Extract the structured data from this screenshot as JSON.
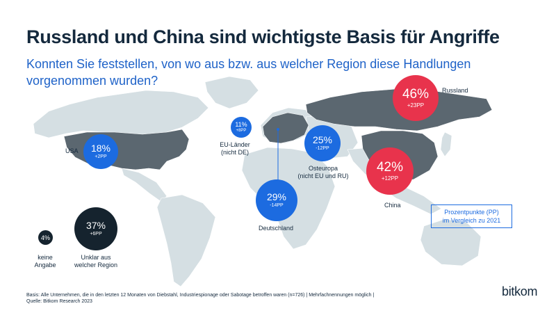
{
  "title": "Russland und China sind wichtigste Basis für Angriffe",
  "subtitle": "Konnten Sie feststellen, von wo aus bzw. aus welcher Region diese Handlungen vorgenommen wurden?",
  "colors": {
    "increase": "#e8334c",
    "decrease_or_other": "#1c6be0",
    "unclear": "#15232e",
    "map_land": "#d5dfe3",
    "map_highlight": "#5b6770"
  },
  "chart_data": {
    "type": "bubble-map",
    "unit": "%",
    "change_unit": "PP",
    "regions": [
      {
        "name": "Russland",
        "value": 46,
        "value_label": "46%",
        "change": 23,
        "change_label": "+23PP"
      },
      {
        "name": "China",
        "value": 42,
        "value_label": "42%",
        "change": 12,
        "change_label": "+12PP"
      },
      {
        "name": "Deutschland",
        "value": 29,
        "value_label": "29%",
        "change": -14,
        "change_label": "-14PP"
      },
      {
        "name": "Osteuropa (nicht EU und RU)",
        "value": 25,
        "value_label": "25%",
        "change": -12,
        "change_label": "-12PP"
      },
      {
        "name": "USA",
        "value": 18,
        "value_label": "18%",
        "change": 2,
        "change_label": "+2PP"
      },
      {
        "name": "EU-Länder (nicht DE)",
        "value": 11,
        "value_label": "11%",
        "change": 8,
        "change_label": "+8PP"
      },
      {
        "name": "Unklar aus welcher Region",
        "value": 37,
        "value_label": "37%",
        "change": 6,
        "change_label": "+6PP"
      },
      {
        "name": "keine Angabe",
        "value": 4,
        "value_label": "4%",
        "change": null,
        "change_label": ""
      }
    ],
    "labels": {
      "russland": "Russland",
      "china": "China",
      "deutschland": "Deutschland",
      "osteuropa_1": "Osteuropa",
      "osteuropa_2": "(nicht EU und RU)",
      "usa": "USA",
      "eu_1": "EU-Länder",
      "eu_2": "(nicht DE)",
      "unklar_1": "Unklar aus",
      "unklar_2": "welcher Region",
      "keine_1": "keine",
      "keine_2": "Angabe"
    }
  },
  "legend": {
    "line1": "Prozentpunkte (PP)",
    "line2": "im Vergleich zu 2021"
  },
  "footer": {
    "basis": "Basis: Alle Unternehmen, die in den letzten 12 Monaten von Diebstahl, Industriespionage oder Sabotage betroffen waren (n=726) | Mehrfachnennungen möglich |",
    "quelle": "Quelle: Bitkom Research 2023"
  },
  "logo": "bitkom"
}
